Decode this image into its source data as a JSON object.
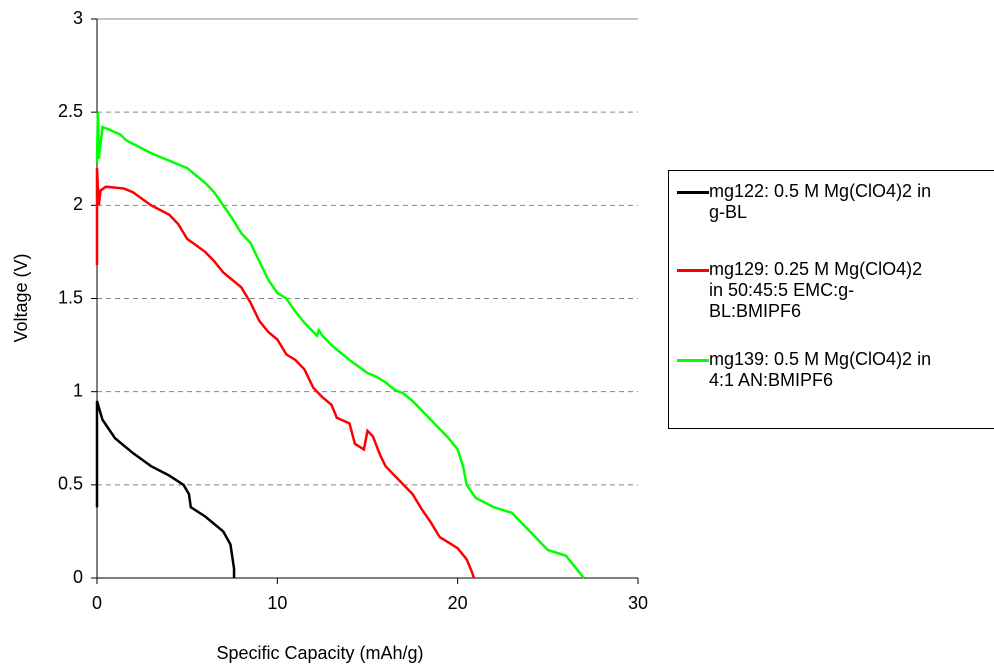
{
  "chart_data": {
    "type": "line",
    "xlabel": "Specific Capacity (mAh/g)",
    "ylabel": "Voltage (V)",
    "xlim": [
      0,
      30
    ],
    "xticks": [
      0,
      10,
      20,
      30
    ],
    "ylim": [
      0,
      3
    ],
    "yticks": [
      0,
      0.5,
      1,
      1.5,
      2,
      2.5,
      3
    ],
    "grid": true,
    "legend": "right",
    "series": [
      {
        "name": "mg122: 0.5 M Mg(ClO4)2 in g-BL",
        "color": "#000000",
        "x": [
          0,
          0,
          0.3,
          1,
          2,
          3,
          4,
          4.8,
          5.1,
          5.2,
          6,
          7,
          7.4,
          7.6,
          7.6
        ],
        "values": [
          0.38,
          0.95,
          0.85,
          0.75,
          0.67,
          0.6,
          0.55,
          0.5,
          0.45,
          0.38,
          0.33,
          0.25,
          0.18,
          0.05,
          0
        ]
      },
      {
        "name": "mg129: 0.25 M Mg(ClO4)2 in 50:45:5 EMC:g-BL:BMIPF6",
        "color": "#ff0000",
        "x": [
          0,
          0,
          0.1,
          0.2,
          0.5,
          1.5,
          2,
          3,
          4,
          4.5,
          5,
          6,
          6.5,
          7,
          7.5,
          8,
          8.5,
          9,
          9.5,
          10,
          10.5,
          11,
          11.5,
          12,
          12.5,
          13,
          13.3,
          14,
          14.3,
          14.8,
          15,
          15.3,
          15.7,
          16,
          16.5,
          17,
          17.5,
          18,
          18.5,
          19,
          19.5,
          20,
          20.5,
          20.8,
          20.9
        ],
        "values": [
          1.68,
          2.2,
          2.0,
          2.08,
          2.1,
          2.09,
          2.07,
          2.0,
          1.95,
          1.9,
          1.82,
          1.75,
          1.7,
          1.64,
          1.6,
          1.56,
          1.48,
          1.38,
          1.32,
          1.28,
          1.2,
          1.17,
          1.12,
          1.02,
          0.97,
          0.93,
          0.86,
          0.83,
          0.72,
          0.69,
          0.79,
          0.76,
          0.66,
          0.6,
          0.55,
          0.5,
          0.45,
          0.37,
          0.3,
          0.22,
          0.19,
          0.16,
          0.1,
          0.03,
          0
        ]
      },
      {
        "name": "mg139: 0.5 M Mg(ClO4)2 in 4:1 AN:BMIPF6",
        "color": "#00ff00",
        "x": [
          0,
          0.05,
          0.1,
          0.2,
          0.3,
          0.6,
          1.3,
          1.6,
          2,
          3,
          4,
          5,
          5.5,
          6,
          6.5,
          7,
          7.5,
          8,
          8.5,
          9,
          9.5,
          10,
          10.5,
          11,
          11.5,
          12,
          12.2,
          12.3,
          12.5,
          13,
          14,
          15,
          15.5,
          16,
          16.5,
          17,
          17.5,
          18,
          19,
          19.5,
          20,
          20.3,
          20.5,
          21,
          22,
          23,
          24,
          25,
          26,
          27
        ],
        "values": [
          2.23,
          2.5,
          2.25,
          2.33,
          2.42,
          2.41,
          2.38,
          2.35,
          2.33,
          2.28,
          2.24,
          2.2,
          2.16,
          2.12,
          2.07,
          2.0,
          1.93,
          1.85,
          1.8,
          1.7,
          1.6,
          1.53,
          1.5,
          1.43,
          1.37,
          1.32,
          1.3,
          1.33,
          1.3,
          1.25,
          1.17,
          1.1,
          1.08,
          1.05,
          1.01,
          0.99,
          0.95,
          0.9,
          0.8,
          0.75,
          0.69,
          0.6,
          0.5,
          0.43,
          0.38,
          0.35,
          0.25,
          0.15,
          0.12,
          0.0
        ]
      }
    ]
  }
}
